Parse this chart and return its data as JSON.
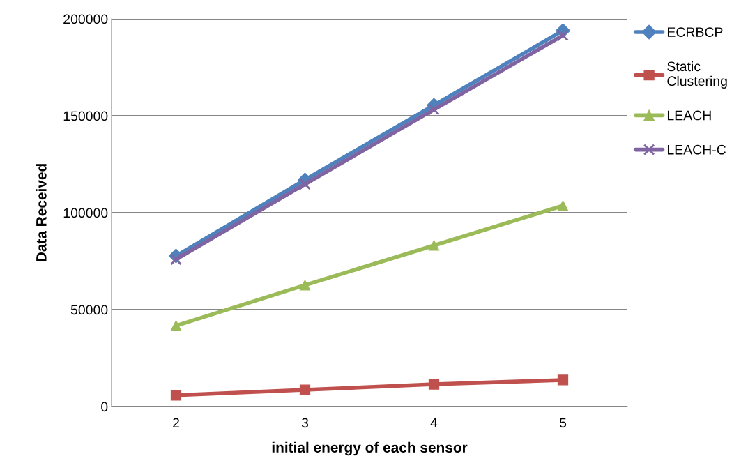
{
  "chart_data": {
    "type": "line",
    "xlabel": "initial energy of each sensor",
    "ylabel": "Data Received",
    "categories": [
      "2",
      "3",
      "4",
      "5"
    ],
    "ylim": [
      0,
      200000
    ],
    "yticks": [
      0,
      50000,
      100000,
      150000,
      200000
    ],
    "grid": "y",
    "legend": "right",
    "line_style": "solid",
    "series": [
      {
        "name": "ECRBCP",
        "color": "#4f81bd",
        "marker": "diamond",
        "values": [
          77700,
          116900,
          155400,
          193900
        ]
      },
      {
        "name": "Static Clustering",
        "color": "#c0504d",
        "marker": "square",
        "values": [
          5800,
          8600,
          11500,
          13700
        ]
      },
      {
        "name": "LEACH",
        "color": "#9bbb59",
        "marker": "triangle",
        "values": [
          41700,
          62600,
          83100,
          103600
        ]
      },
      {
        "name": "LEACH-C",
        "color": "#8064a2",
        "marker": "cross",
        "values": [
          75900,
          114700,
          153200,
          191400
        ]
      }
    ]
  }
}
